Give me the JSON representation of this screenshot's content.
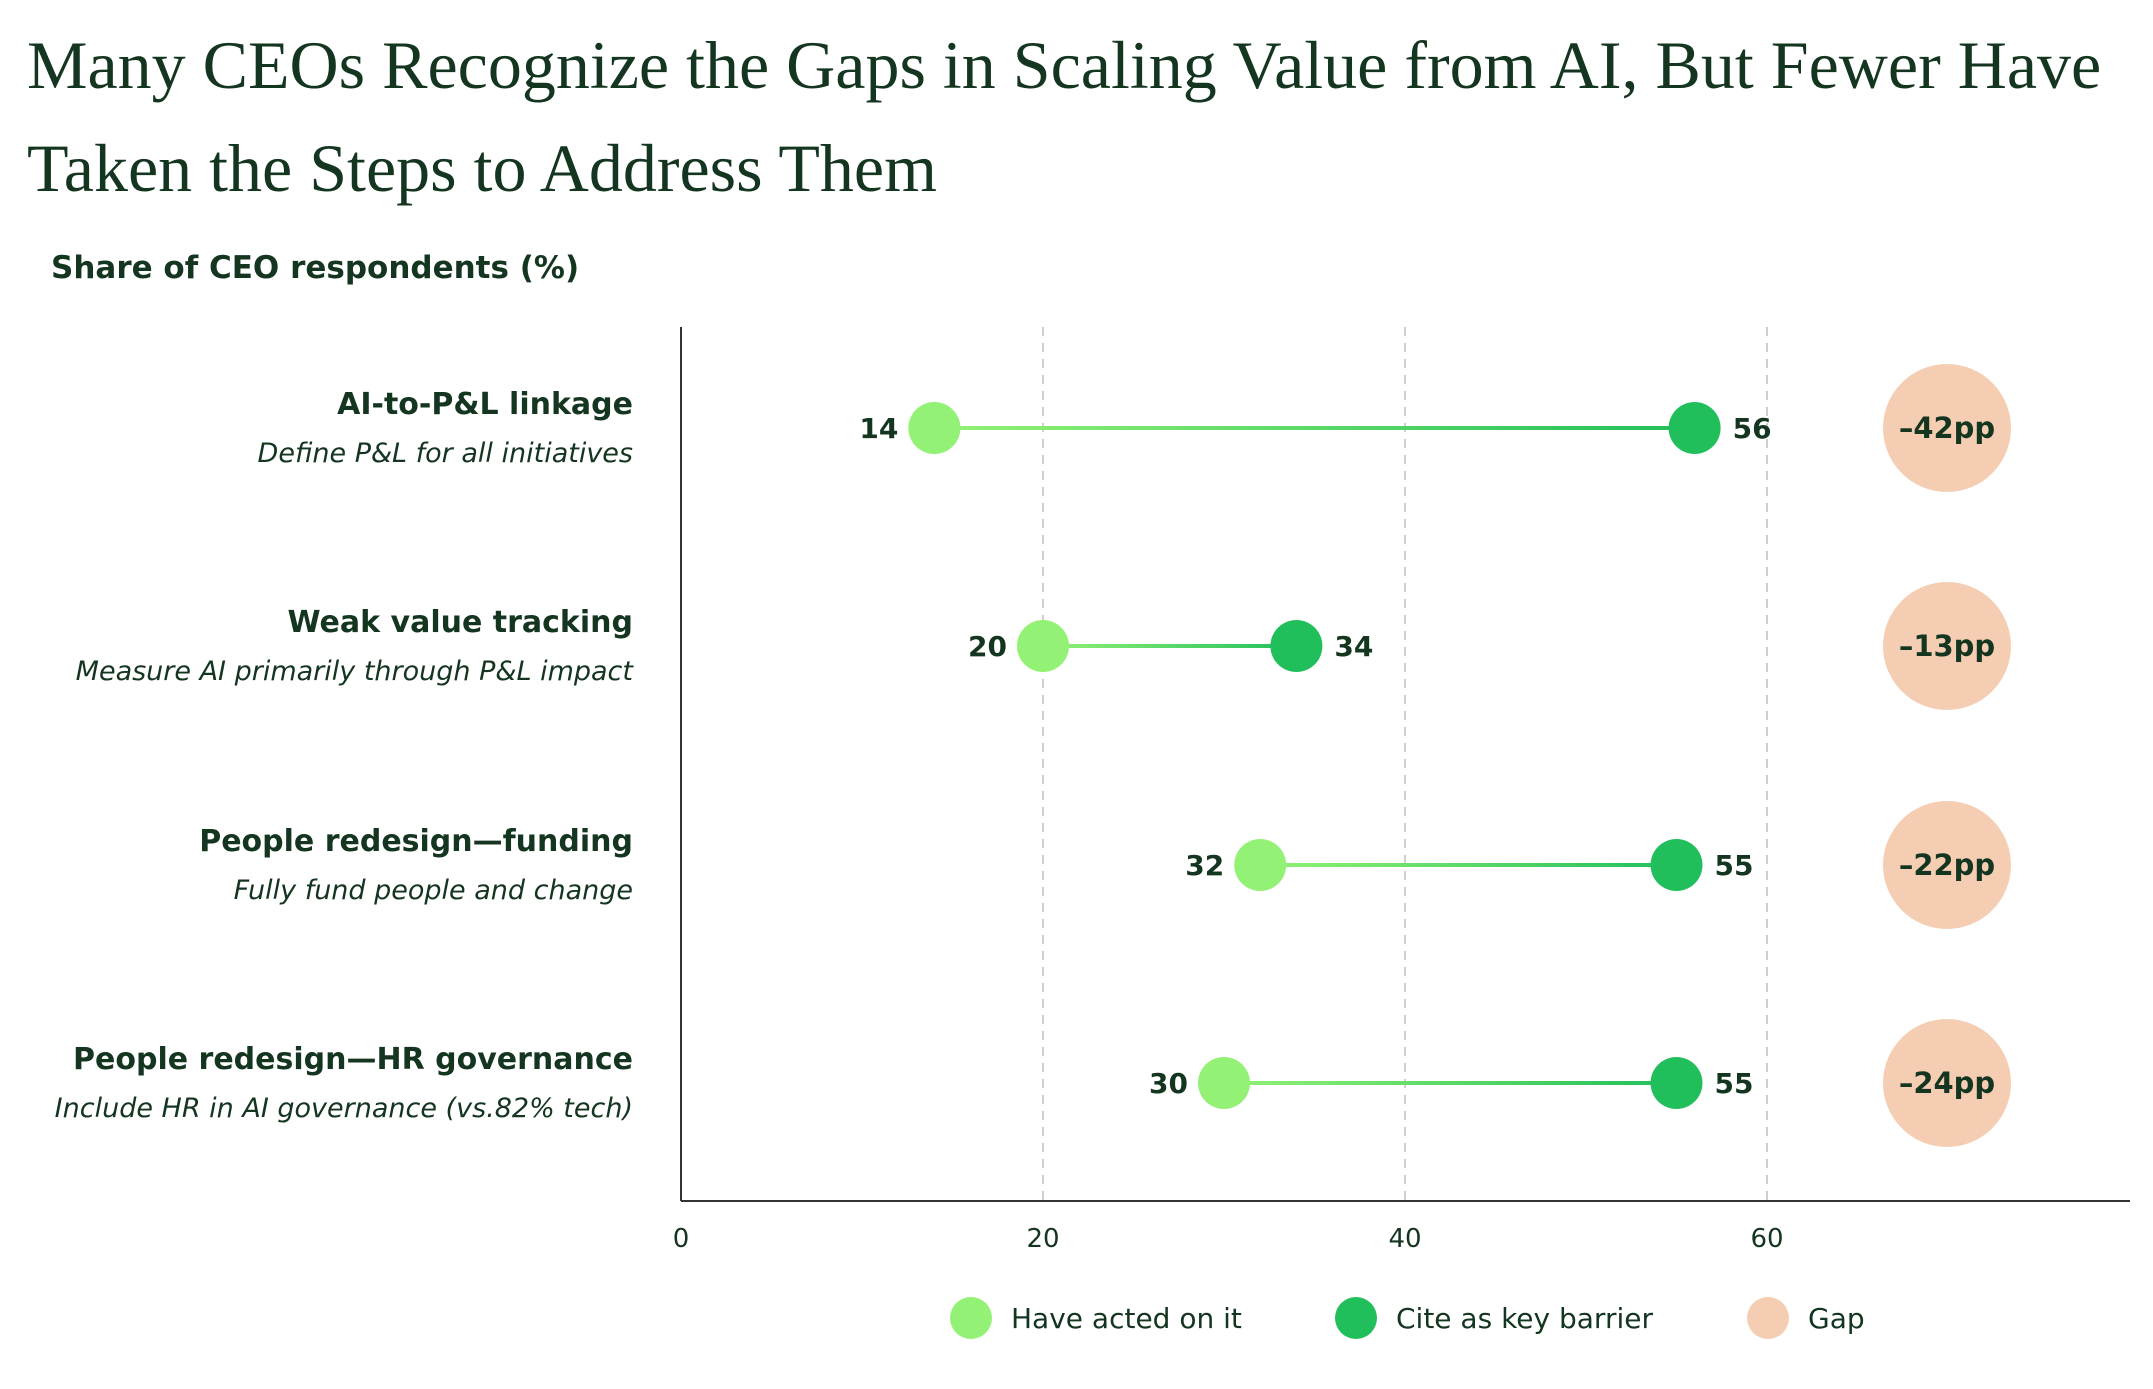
{
  "title": "Many CEOs Recognize the Gaps in Scaling Value from AI, But Fewer Have Taken the Steps to Address Them",
  "colors": {
    "acted": "#93f275",
    "barrier": "#21bf5b",
    "gap": "#f5cdb3",
    "text": "#14351f",
    "grid": "#cfcfcf"
  },
  "chart_data": {
    "type": "dumbbell",
    "ylabel": "Share of CEO respondents (%)",
    "xlim": [
      0,
      80
    ],
    "xticks": [
      0,
      20,
      40,
      60
    ],
    "grid": "vertical dashed",
    "categories": [
      {
        "label": "AI-to-P&L linkage",
        "sublabel": "Define P&L for all initiatives",
        "acted": 14,
        "barrier": 56,
        "gap": "–42pp"
      },
      {
        "label": "Weak value tracking",
        "sublabel": "Measure AI primarily through P&L impact",
        "acted": 20,
        "barrier": 34,
        "gap": "–13pp"
      },
      {
        "label": "People redesign—funding",
        "sublabel": "Fully fund people and change",
        "acted": 32,
        "barrier": 55,
        "gap": "–22pp"
      },
      {
        "label": "People redesign—HR governance",
        "sublabel": "Include HR in AI governance (vs.82% tech)",
        "acted": 30,
        "barrier": 55,
        "gap": "–24pp"
      }
    ],
    "legend": [
      {
        "key": "acted",
        "label": "Have acted on it"
      },
      {
        "key": "barrier",
        "label": "Cite as key barrier"
      },
      {
        "key": "gap",
        "label": "Gap"
      }
    ],
    "legend_position": "bottom"
  }
}
